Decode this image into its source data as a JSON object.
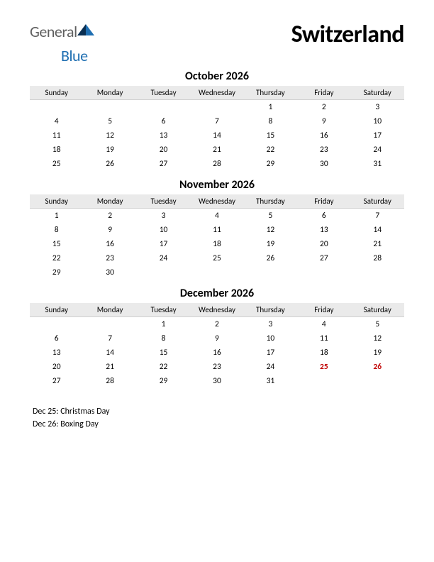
{
  "logo": {
    "word1": "General",
    "word2": "Blue"
  },
  "title": "Switzerland",
  "weekday_labels": [
    "Sunday",
    "Monday",
    "Tuesday",
    "Wednesday",
    "Thursday",
    "Friday",
    "Saturday"
  ],
  "colors": {
    "header_bg": "#eaeaea",
    "holiday_text": "#c00000",
    "logo_gray": "#5f5f5f",
    "logo_blue": "#1f6fb2",
    "logo_tri_dark": "#0a2f52",
    "logo_tri_light": "#1f6fb2"
  },
  "months": [
    {
      "title": "October 2026",
      "weeks": [
        [
          "",
          "",
          "",
          "",
          "1",
          "2",
          "3"
        ],
        [
          "4",
          "5",
          "6",
          "7",
          "8",
          "9",
          "10"
        ],
        [
          "11",
          "12",
          "13",
          "14",
          "15",
          "16",
          "17"
        ],
        [
          "18",
          "19",
          "20",
          "21",
          "22",
          "23",
          "24"
        ],
        [
          "25",
          "26",
          "27",
          "28",
          "29",
          "30",
          "31"
        ]
      ],
      "holidays": []
    },
    {
      "title": "November 2026",
      "weeks": [
        [
          "1",
          "2",
          "3",
          "4",
          "5",
          "6",
          "7"
        ],
        [
          "8",
          "9",
          "10",
          "11",
          "12",
          "13",
          "14"
        ],
        [
          "15",
          "16",
          "17",
          "18",
          "19",
          "20",
          "21"
        ],
        [
          "22",
          "23",
          "24",
          "25",
          "26",
          "27",
          "28"
        ],
        [
          "29",
          "30",
          "",
          "",
          "",
          "",
          ""
        ]
      ],
      "holidays": []
    },
    {
      "title": "December 2026",
      "weeks": [
        [
          "",
          "",
          "1",
          "2",
          "3",
          "4",
          "5"
        ],
        [
          "6",
          "7",
          "8",
          "9",
          "10",
          "11",
          "12"
        ],
        [
          "13",
          "14",
          "15",
          "16",
          "17",
          "18",
          "19"
        ],
        [
          "20",
          "21",
          "22",
          "23",
          "24",
          "25",
          "26"
        ],
        [
          "27",
          "28",
          "29",
          "30",
          "31",
          "",
          ""
        ]
      ],
      "holidays": [
        "25",
        "26"
      ]
    }
  ],
  "holiday_notes": [
    "Dec 25: Christmas Day",
    "Dec 26: Boxing Day"
  ]
}
